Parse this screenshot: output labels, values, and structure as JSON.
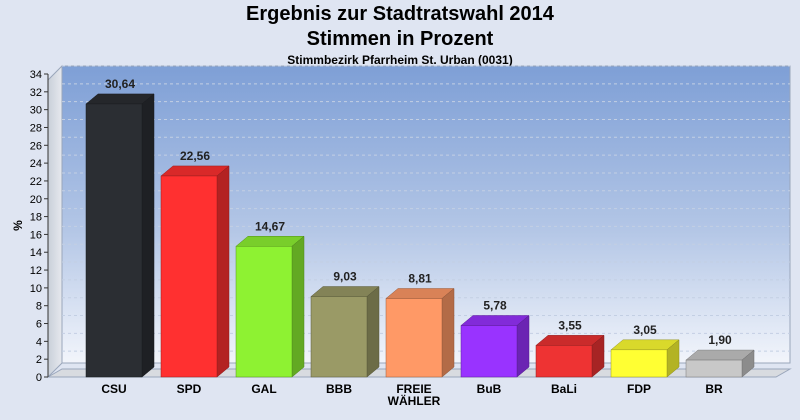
{
  "chart_data": {
    "type": "bar",
    "title": "Ergebnis zur Stadtratswahl 2014",
    "title2": "Stimmen in Prozent",
    "subtitle": "Stimmbezirk Pfarrheim St. Urban (0031)",
    "ylabel": "%",
    "xlabel": "",
    "ylim": [
      0,
      34
    ],
    "ytick_step": 2,
    "grid": true,
    "legend": "none",
    "categories": [
      "CSU",
      "SPD",
      "GAL",
      "BBB",
      "FREIE WÄHLER",
      "BuB",
      "BaLi",
      "FDP",
      "BR"
    ],
    "category_lines": [
      [
        "CSU"
      ],
      [
        "SPD"
      ],
      [
        "GAL"
      ],
      [
        "BBB"
      ],
      [
        "FREIE",
        "WÄHLER"
      ],
      [
        "BuB"
      ],
      [
        "BaLi"
      ],
      [
        "FDP"
      ],
      [
        "BR"
      ]
    ],
    "values": [
      30.64,
      22.56,
      14.67,
      9.03,
      8.81,
      5.78,
      3.55,
      3.05,
      1.9
    ],
    "value_labels": [
      "30,64",
      "22,56",
      "14,67",
      "9,03",
      "8,81",
      "5,78",
      "3,55",
      "3,05",
      "1,90"
    ],
    "colors": [
      "#2b2e33",
      "#ff3030",
      "#8ef232",
      "#9a9a66",
      "#ff9966",
      "#9933ff",
      "#ee3333",
      "#ffff33",
      "#c8c8c8"
    ]
  }
}
